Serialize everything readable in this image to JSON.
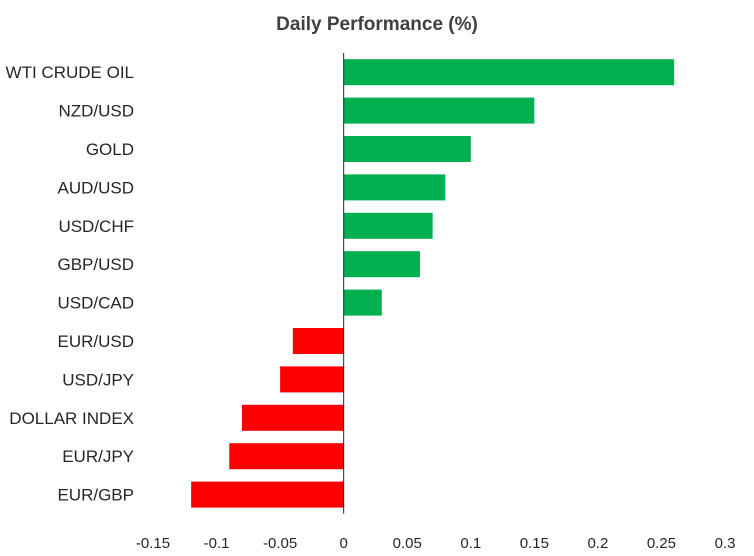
{
  "chart_data": {
    "type": "bar",
    "orientation": "horizontal",
    "title": "Daily Performance (%)",
    "xlabel": "",
    "ylabel": "",
    "categories": [
      "WTI CRUDE OIL",
      "NZD/USD",
      "GOLD",
      "AUD/USD",
      "USD/CHF",
      "GBP/USD",
      "USD/CAD",
      "EUR/USD",
      "USD/JPY",
      "DOLLAR INDEX",
      "EUR/JPY",
      "EUR/GBP"
    ],
    "values": [
      0.26,
      0.15,
      0.1,
      0.08,
      0.07,
      0.06,
      0.03,
      -0.04,
      -0.05,
      -0.08,
      -0.09,
      -0.12
    ],
    "xlim": [
      -0.15,
      0.3
    ],
    "xticks": [
      -0.15,
      -0.1,
      -0.05,
      0,
      0.05,
      0.1,
      0.15,
      0.2,
      0.25,
      0.3
    ],
    "xtick_labels": [
      "-0.15",
      "-0.1",
      "-0.05",
      "0",
      "0.05",
      "0.1",
      "0.15",
      "0.2",
      "0.25",
      "0.3"
    ],
    "grid": false,
    "legend": "none",
    "colors": {
      "positive": "#00B050",
      "negative": "#FF0000",
      "axis": "#262626"
    }
  }
}
